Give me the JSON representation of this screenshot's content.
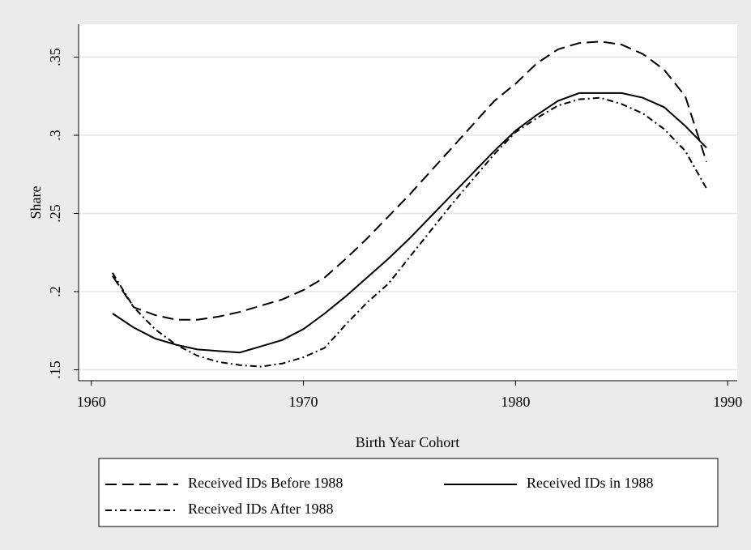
{
  "chart_data": {
    "type": "line",
    "x_label": "Birth Year Cohort",
    "y_label": "Share",
    "x": [
      1961,
      1962,
      1963,
      1964,
      1965,
      1966,
      1967,
      1968,
      1969,
      1970,
      1971,
      1972,
      1973,
      1974,
      1975,
      1976,
      1977,
      1978,
      1979,
      1980,
      1981,
      1982,
      1983,
      1984,
      1985,
      1986,
      1987,
      1988,
      1989
    ],
    "series": [
      {
        "name": "Received IDs Before 1988",
        "color": "#000000",
        "dash": "dashed",
        "values": [
          0.21,
          0.19,
          0.185,
          0.182,
          0.182,
          0.184,
          0.187,
          0.191,
          0.195,
          0.201,
          0.209,
          0.221,
          0.234,
          0.248,
          0.262,
          0.277,
          0.292,
          0.307,
          0.322,
          0.333,
          0.346,
          0.355,
          0.359,
          0.36,
          0.358,
          0.352,
          0.342,
          0.325,
          0.283
        ]
      },
      {
        "name": "Received IDs in 1988",
        "color": "#000000",
        "dash": "solid",
        "values": [
          0.186,
          0.177,
          0.17,
          0.166,
          0.163,
          0.162,
          0.161,
          0.165,
          0.169,
          0.176,
          0.186,
          0.197,
          0.209,
          0.221,
          0.234,
          0.248,
          0.262,
          0.276,
          0.29,
          0.303,
          0.313,
          0.322,
          0.327,
          0.327,
          0.327,
          0.324,
          0.318,
          0.306,
          0.292
        ]
      },
      {
        "name": "Received IDs After 1988",
        "color": "#000000",
        "dash": "dashdot",
        "values": [
          0.212,
          0.19,
          0.176,
          0.166,
          0.159,
          0.155,
          0.153,
          0.152,
          0.154,
          0.158,
          0.164,
          0.179,
          0.193,
          0.205,
          0.222,
          0.239,
          0.256,
          0.272,
          0.288,
          0.302,
          0.311,
          0.319,
          0.323,
          0.324,
          0.32,
          0.314,
          0.304,
          0.29,
          0.266
        ]
      }
    ],
    "xlim": [
      1959.4,
      1990.45
    ],
    "xticks": [
      1960,
      1970,
      1980,
      1990
    ],
    "ylim": [
      0.143,
      0.371
    ],
    "yticks": [
      {
        "value": 0.15,
        "label": ".15"
      },
      {
        "value": 0.2,
        "label": ".2"
      },
      {
        "value": 0.25,
        "label": ".25"
      },
      {
        "value": 0.3,
        "label": ".3"
      },
      {
        "value": 0.35,
        "label": ".35"
      }
    ],
    "grid": true
  }
}
